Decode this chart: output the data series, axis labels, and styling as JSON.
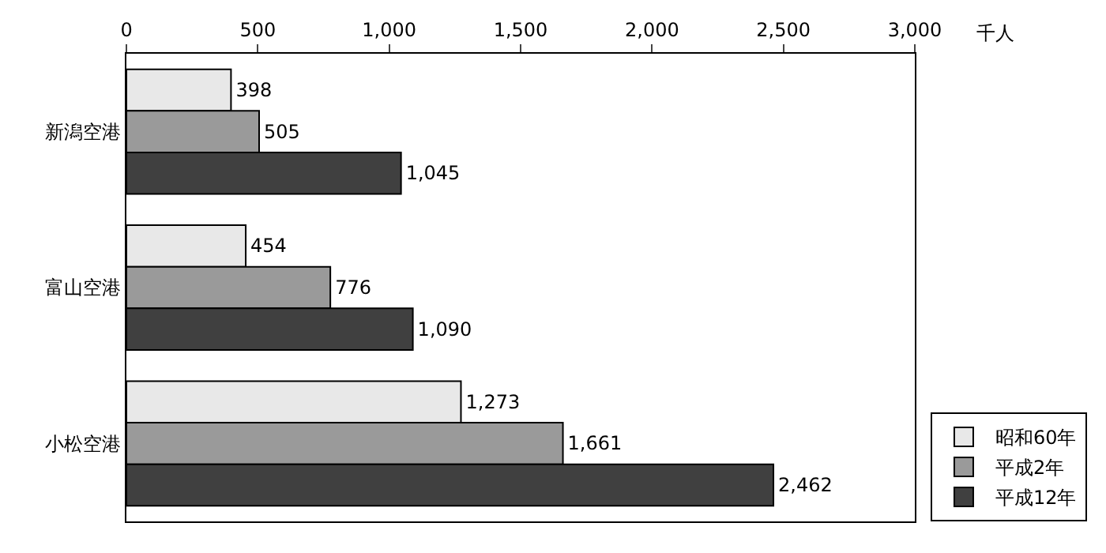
{
  "chart_data": {
    "type": "bar",
    "orientation": "horizontal",
    "categories": [
      "新潟空港",
      "富山空港",
      "小松空港"
    ],
    "xlabel": "千人",
    "xlim": [
      0,
      3000
    ],
    "xticks": [
      0,
      500,
      {
        "value": 1000,
        "label": "1,000"
      },
      {
        "value": 1500,
        "label": "1,500"
      },
      {
        "value": 2000,
        "label": "2,000"
      },
      {
        "value": 2500,
        "label": "2,500"
      },
      {
        "value": 3000,
        "label": "3,000"
      }
    ],
    "series": [
      {
        "name": "昭和60年",
        "color": "#e8e8e8",
        "values": [
          398,
          454,
          1273
        ],
        "value_labels": [
          "398",
          "454",
          "1,273"
        ]
      },
      {
        "name": "平成2年",
        "color": "#9a9a9a",
        "values": [
          505,
          776,
          1661
        ],
        "value_labels": [
          "505",
          "776",
          "1,661"
        ]
      },
      {
        "name": "平成12年",
        "color": "#404040",
        "values": [
          1045,
          1090,
          2462
        ],
        "value_labels": [
          "1,045",
          "1,090",
          "2,462"
        ]
      }
    ],
    "legend": "bottom right"
  }
}
